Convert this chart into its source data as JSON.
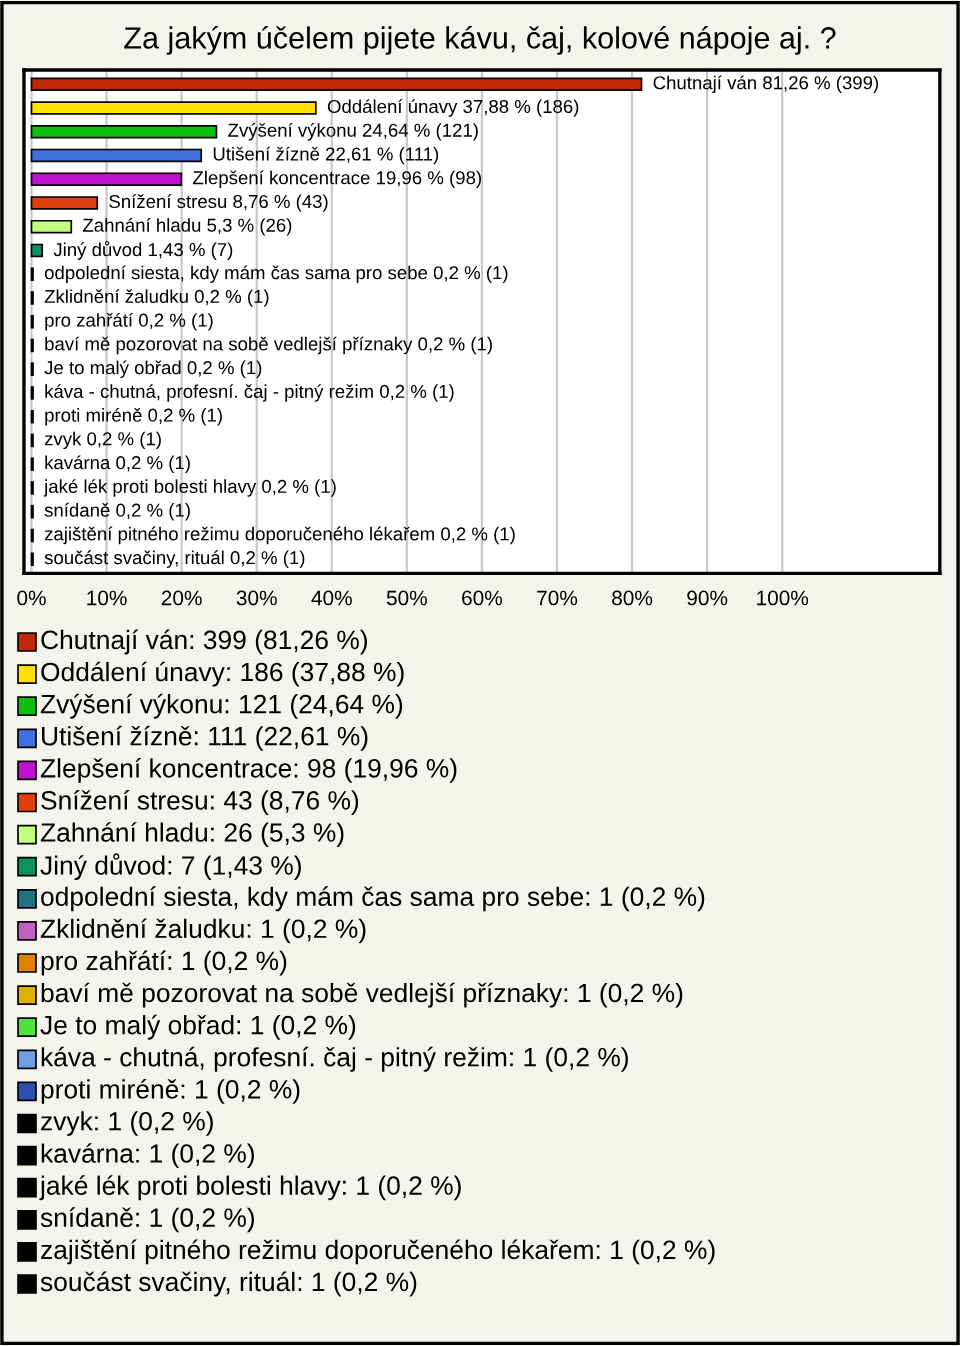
{
  "chart_data": {
    "type": "bar",
    "orientation": "horizontal",
    "title": "Za jakým účelem pijete kávu, čaj, kolové nápoje aj. ?",
    "categories": [
      null,
      null,
      null,
      null,
      null,
      null,
      null,
      null,
      null,
      null,
      null,
      null,
      null,
      null,
      null,
      null,
      null,
      null,
      null,
      null,
      null
    ],
    "values": [
      81.26,
      37.88,
      24.64,
      22.61,
      19.96,
      8.76,
      5.3,
      1.43,
      0.2,
      0.2,
      0.2,
      0.2,
      0.2,
      0.2,
      0.2,
      0.2,
      0.2,
      0.2,
      0.2,
      0.2,
      0.2
    ],
    "colors": [
      "#c0280a",
      "#ffe000",
      "#10c010",
      "#4070e0",
      "#c010d0",
      "#e04010",
      "#c0ff80",
      "#109060",
      "#207080",
      "#c060c0",
      "#e08000",
      "#e0b000",
      "#50e040",
      "#70a0e0",
      "#3050b0",
      "#000000",
      "#000000",
      "#000000",
      "#000000",
      "#000000",
      "#000000"
    ],
    "value_labels": [
      "Chutnají ván 81,26 % (399)",
      "Oddálení únavy 37,88 % (186)",
      "Zvýšení výkonu 24,64 % (121)",
      "Utišení žízně 22,61 % (111)",
      "Zlepšení koncentrace 19,96 % (98)",
      "Snížení stresu 8,76 % (43)",
      "Zahnání hladu 5,3 % (26)",
      "Jiný důvod 1,43 % (7)",
      "odpolední siesta, kdy mám čas sama pro sebe 0,2 % (1)",
      "Zklidnění žaludku 0,2 % (1)",
      "pro zahřátí 0,2 % (1)",
      "baví mě pozorovat na sobě vedlejší příznaky 0,2 % (1)",
      "Je to malý obřad 0,2 % (1)",
      "káva - chutná, profesní. čaj - pitný režim 0,2 % (1)",
      "proti miréně 0,2 % (1)",
      "zvyk 0,2 % (1)",
      "kavárna 0,2 % (1)",
      "jaké lék proti bolesti hlavy 0,2 % (1)",
      "snídaně 0,2 % (1)",
      "zajištění pitného režimu doporučeného lékařem 0,2 % (1)",
      "součást svačiny, rituál 0,2 % (1)"
    ],
    "annotations": [
      "Chutnají ván: 399 (81,26 %)",
      "Oddálení únavy: 186 (37,88 %)",
      "Zvýšení výkonu: 121 (24,64 %)",
      "Utišení žízně: 111 (22,61 %)",
      "Zlepšení koncentrace: 98 (19,96 %)",
      "Snížení stresu: 43 (8,76 %)",
      "Zahnání hladu: 26 (5,3 %)",
      "Jiný důvod: 7 (1,43 %)",
      "odpolední siesta, kdy mám čas sama pro sebe: 1 (0,2 %)",
      "Zklidnění žaludku: 1 (0,2 %)",
      "pro zahřátí: 1 (0,2 %)",
      "baví mě pozorovat na sobě vedlejší příznaky: 1 (0,2 %)",
      "Je to malý obřad: 1 (0,2 %)",
      "káva - chutná, profesní. čaj - pitný režim: 1 (0,2 %)",
      "proti miréně: 1 (0,2 %)",
      "zvyk: 1 (0,2 %)",
      "kavárna: 1 (0,2 %)",
      "jaké lék proti bolesti hlavy: 1 (0,2 %)",
      "snídaně: 1 (0,2 %)",
      "zajištění pitného režimu doporučeného lékařem: 1 (0,2 %)",
      "součást svačiny, rituál: 1 (0,2 %)"
    ],
    "xlim": [
      -1,
      121
    ],
    "xticks": [
      {
        "value": 0,
        "label": "0%"
      },
      {
        "value": 10,
        "label": "10%"
      },
      {
        "value": 20,
        "label": "20%"
      },
      {
        "value": 30,
        "label": "30%"
      },
      {
        "value": 40,
        "label": "40%"
      },
      {
        "value": 50,
        "label": "50%"
      },
      {
        "value": 60,
        "label": "60%"
      },
      {
        "value": 70,
        "label": "70%"
      },
      {
        "value": 80,
        "label": "80%"
      },
      {
        "value": 90,
        "label": "90%"
      },
      {
        "value": 100,
        "label": "100%"
      }
    ],
    "grid": "x",
    "tick_labels": "x"
  }
}
